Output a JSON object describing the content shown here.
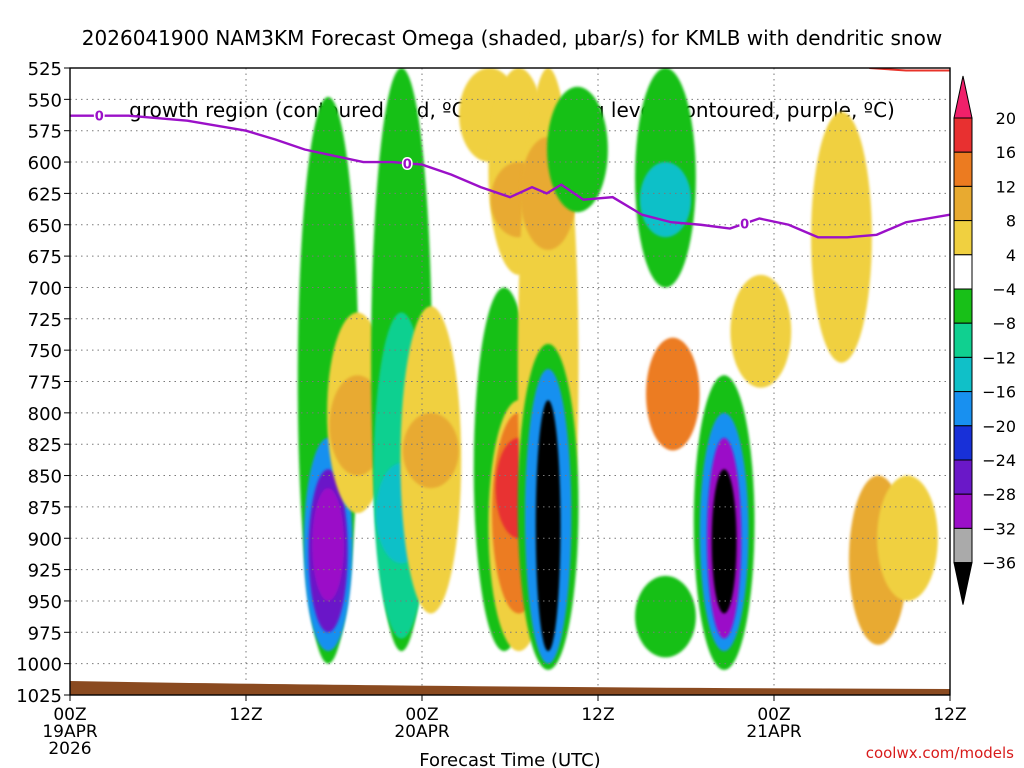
{
  "title": {
    "line1": "2026041900 NAM3KM Forecast Omega (shaded, μbar/s) for KMLB with dendritic snow",
    "line2": "growth region (contoured, red, ºC) and freezing level (contoured, purple, ºC)"
  },
  "watermark": "coolwx.com/models",
  "colors": {
    "ground": "#8a4a20",
    "freezing": "#9b10c8",
    "dgz": "#e8332a",
    "grid": "#7a7a7a"
  },
  "chart_data": {
    "type": "heatmap",
    "title": "2026041900 NAM3KM Forecast Omega (shaded, μbar/s) for KMLB",
    "xlabel": "Forecast Time (UTC)",
    "ylabel": "",
    "x_range_hours": [
      0,
      60
    ],
    "y_range_hpa": [
      525,
      1025
    ],
    "yticks": [
      525,
      550,
      575,
      600,
      625,
      650,
      675,
      700,
      725,
      750,
      775,
      800,
      825,
      850,
      875,
      900,
      925,
      950,
      975,
      1000,
      1025
    ],
    "xticks": [
      {
        "hour": 0,
        "label": "00Z",
        "sub": "19APR",
        "sub2": "2026"
      },
      {
        "hour": 12,
        "label": "12Z",
        "sub": "",
        "sub2": ""
      },
      {
        "hour": 24,
        "label": "00Z",
        "sub": "20APR",
        "sub2": ""
      },
      {
        "hour": 36,
        "label": "12Z",
        "sub": "",
        "sub2": ""
      },
      {
        "hour": 48,
        "label": "00Z",
        "sub": "21APR",
        "sub2": ""
      },
      {
        "hour": 60,
        "label": "12Z",
        "sub": "",
        "sub2": ""
      }
    ],
    "colorbar": {
      "labels": [
        "20",
        "16",
        "12",
        "8",
        "4",
        "−4",
        "−8",
        "−12",
        "−16",
        "−20",
        "−24",
        "−28",
        "−32",
        "−36"
      ],
      "colors": [
        "#f0206a",
        "#e83030",
        "#ec7b20",
        "#e8aa30",
        "#f0d040",
        "#ffffff",
        "#18c018",
        "#10d090",
        "#10c0c8",
        "#1890f0",
        "#1830d8",
        "#6a18c8",
        "#9b10c8",
        "#aaaaaa",
        "#000000"
      ]
    },
    "omega_cells": [
      {
        "hour": 17.6,
        "p_top": 548,
        "p_bot": 1000,
        "value": -6
      },
      {
        "hour": 17.6,
        "p_top": 820,
        "p_bot": 990,
        "value": -16
      },
      {
        "hour": 17.6,
        "p_top": 845,
        "p_bot": 975,
        "value": -24
      },
      {
        "hour": 17.6,
        "p_top": 860,
        "p_bot": 950,
        "value": -30
      },
      {
        "hour": 19.6,
        "p_top": 720,
        "p_bot": 880,
        "value": 6
      },
      {
        "hour": 19.6,
        "p_top": 770,
        "p_bot": 850,
        "value": 10
      },
      {
        "hour": 22.6,
        "p_top": 525,
        "p_bot": 990,
        "value": -6
      },
      {
        "hour": 22.6,
        "p_top": 720,
        "p_bot": 980,
        "value": -10
      },
      {
        "hour": 22.6,
        "p_top": 840,
        "p_bot": 920,
        "value": -14
      },
      {
        "hour": 24.6,
        "p_top": 715,
        "p_bot": 960,
        "value": 6
      },
      {
        "hour": 24.6,
        "p_top": 800,
        "p_bot": 860,
        "value": 10
      },
      {
        "hour": 28.6,
        "p_top": 525,
        "p_bot": 600,
        "value": 6
      },
      {
        "hour": 30.6,
        "p_top": 525,
        "p_bot": 690,
        "value": 6
      },
      {
        "hour": 30.6,
        "p_top": 600,
        "p_bot": 660,
        "value": 10
      },
      {
        "hour": 29.6,
        "p_top": 700,
        "p_bot": 990,
        "value": -6
      },
      {
        "hour": 30.6,
        "p_top": 790,
        "p_bot": 990,
        "value": 6
      },
      {
        "hour": 30.6,
        "p_top": 800,
        "p_bot": 960,
        "value": 12
      },
      {
        "hour": 30.6,
        "p_top": 820,
        "p_bot": 900,
        "value": 18
      },
      {
        "hour": 32.6,
        "p_top": 525,
        "p_bot": 1000,
        "value": 6
      },
      {
        "hour": 32.6,
        "p_top": 580,
        "p_bot": 670,
        "value": 10
      },
      {
        "hour": 32.6,
        "p_top": 745,
        "p_bot": 1005,
        "value": -6
      },
      {
        "hour": 32.6,
        "p_top": 765,
        "p_bot": 1000,
        "value": -18
      },
      {
        "hour": 32.6,
        "p_top": 790,
        "p_bot": 990,
        "value": -36
      },
      {
        "hour": 34.6,
        "p_top": 540,
        "p_bot": 640,
        "value": -6
      },
      {
        "hour": 40.6,
        "p_top": 525,
        "p_bot": 700,
        "value": -6
      },
      {
        "hour": 40.6,
        "p_top": 600,
        "p_bot": 660,
        "value": -14
      },
      {
        "hour": 41.1,
        "p_top": 740,
        "p_bot": 830,
        "value": 12
      },
      {
        "hour": 40.6,
        "p_top": 930,
        "p_bot": 995,
        "value": -6
      },
      {
        "hour": 44.6,
        "p_top": 770,
        "p_bot": 1005,
        "value": -6
      },
      {
        "hour": 44.6,
        "p_top": 800,
        "p_bot": 990,
        "value": -16
      },
      {
        "hour": 44.6,
        "p_top": 820,
        "p_bot": 980,
        "value": -28
      },
      {
        "hour": 44.6,
        "p_top": 845,
        "p_bot": 960,
        "value": -36
      },
      {
        "hour": 47.1,
        "p_top": 690,
        "p_bot": 780,
        "value": 6
      },
      {
        "hour": 52.6,
        "p_top": 560,
        "p_bot": 760,
        "value": 6
      },
      {
        "hour": 55.1,
        "p_top": 850,
        "p_bot": 985,
        "value": 8
      },
      {
        "hour": 57.1,
        "p_top": 850,
        "p_bot": 950,
        "value": 6
      }
    ],
    "freezing_level": {
      "label": "0",
      "hours": [
        0,
        4,
        8,
        12,
        14,
        16,
        18,
        20,
        22,
        24,
        26,
        28,
        30,
        31.5,
        32.5,
        33.5,
        35,
        37,
        39,
        41,
        43,
        45,
        47,
        49,
        51,
        53,
        55,
        57,
        60
      ],
      "p_hpa": [
        563,
        563,
        567,
        575,
        582,
        590,
        595,
        600,
        600,
        602,
        610,
        620,
        628,
        620,
        625,
        618,
        630,
        628,
        642,
        648,
        650,
        653,
        645,
        650,
        660,
        660,
        658,
        648,
        642
      ]
    },
    "dgz_segment": {
      "hours": [
        54.5,
        57,
        60
      ],
      "p_hpa": [
        525,
        527,
        527
      ]
    },
    "ground_p_hpa": 1025
  }
}
